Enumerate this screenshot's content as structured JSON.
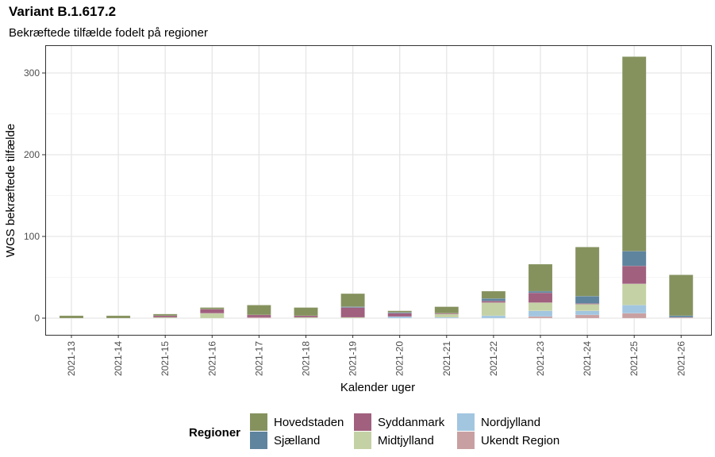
{
  "chart_data": {
    "type": "bar",
    "stacked": true,
    "title": "Variant B.1.617.2",
    "subtitle": "Bekræftede tilfælde fodelt på regioner",
    "xlabel": "Kalender uger",
    "ylabel": "WGS bekræftede tilfælde",
    "ylim": [
      0,
      355
    ],
    "yticks": [
      0,
      100,
      200,
      300
    ],
    "grid": true,
    "legend": {
      "title": "Regioner",
      "placement": "bottom"
    },
    "categories": [
      "2021-13",
      "2021-14",
      "2021-15",
      "2021-16",
      "2021-17",
      "2021-18",
      "2021-19",
      "2021-20",
      "2021-21",
      "2021-22",
      "2021-23",
      "2021-24",
      "2021-25",
      "2021-26"
    ],
    "series": [
      {
        "name": "Ukendt Region",
        "color": "#c9a0a2",
        "values": [
          0,
          0,
          0,
          0,
          1,
          0,
          0,
          0,
          0,
          0,
          2,
          4,
          6,
          1
        ]
      },
      {
        "name": "Nordjylland",
        "color": "#a2c6e0",
        "values": [
          0,
          0,
          0,
          0,
          0,
          0,
          0,
          2,
          1,
          3,
          7,
          5,
          10,
          0
        ]
      },
      {
        "name": "Midtjylland",
        "color": "#c4d1a4",
        "values": [
          0,
          0,
          1,
          6,
          0,
          1,
          1,
          0,
          4,
          16,
          10,
          8,
          26,
          0
        ]
      },
      {
        "name": "Syddanmark",
        "color": "#a0607e",
        "values": [
          0,
          0,
          2,
          5,
          3,
          2,
          12,
          4,
          1,
          2,
          12,
          1,
          22,
          0
        ]
      },
      {
        "name": "Sjælland",
        "color": "#5e849e",
        "values": [
          0,
          0,
          0,
          0,
          0,
          0,
          1,
          1,
          0,
          3,
          2,
          9,
          18,
          2
        ]
      },
      {
        "name": "Hovedstaden",
        "color": "#85925e",
        "values": [
          3,
          3,
          2,
          2,
          12,
          10,
          16,
          2,
          8,
          9,
          33,
          60,
          238,
          50
        ]
      }
    ]
  }
}
